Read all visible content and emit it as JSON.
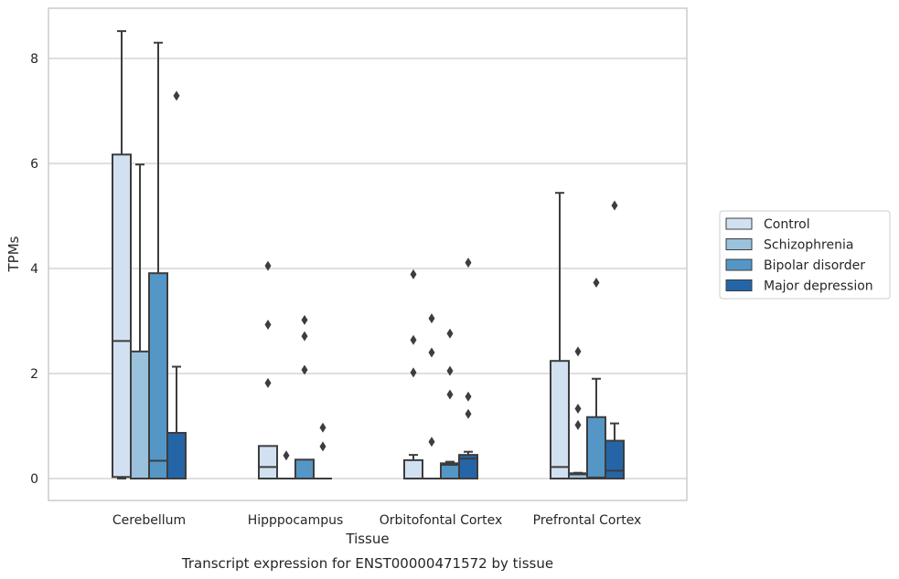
{
  "chart_data": {
    "type": "box",
    "caption": "Transcript expression for ENST00000471572 by tissue",
    "xlabel": "Tissue",
    "ylabel": "TPMs",
    "ylim": [
      -0.42,
      8.96
    ],
    "yticks": [
      0,
      2,
      4,
      6,
      8
    ],
    "grid": "horizontal",
    "legend_position": "right",
    "categories": [
      "Cerebellum",
      "Hipppocampus",
      "Orbitofontal Cortex",
      "Prefrontal Cortex"
    ],
    "series": [
      {
        "name": "Control",
        "color": "#d2e1f2",
        "boxes": [
          {
            "q1": 0.03,
            "median": 2.62,
            "q3": 6.17,
            "low": 0.0,
            "high": 8.52,
            "outliers": []
          },
          {
            "q1": 0.0,
            "median": 0.22,
            "q3": 0.62,
            "low": 0.0,
            "high": 0.62,
            "outliers": [
              1.82,
              2.93,
              4.05
            ]
          },
          {
            "q1": 0.0,
            "median": 0.0,
            "q3": 0.35,
            "low": 0.0,
            "high": 0.45,
            "outliers": [
              2.02,
              2.64,
              3.89
            ]
          },
          {
            "q1": 0.0,
            "median": 0.22,
            "q3": 2.24,
            "low": 0.0,
            "high": 5.44,
            "outliers": []
          }
        ]
      },
      {
        "name": "Schizophrenia",
        "color": "#9ac2dc",
        "boxes": [
          {
            "q1": 0.0,
            "median": 0.0,
            "q3": 2.42,
            "low": 0.0,
            "high": 5.98,
            "outliers": []
          },
          {
            "q1": 0.0,
            "median": 0.0,
            "q3": 0.0,
            "low": 0.0,
            "high": 0.0,
            "outliers": [
              0.44
            ]
          },
          {
            "q1": 0.0,
            "median": 0.0,
            "q3": 0.0,
            "low": 0.0,
            "high": 0.0,
            "outliers": [
              0.7,
              2.4,
              3.05
            ]
          },
          {
            "q1": 0.0,
            "median": 0.08,
            "q3": 0.1,
            "low": 0.0,
            "high": 0.11,
            "outliers": [
              1.02,
              1.33,
              2.42
            ]
          }
        ]
      },
      {
        "name": "Bipolar disorder",
        "color": "#5497c6",
        "boxes": [
          {
            "q1": 0.0,
            "median": 0.34,
            "q3": 3.91,
            "low": 0.0,
            "high": 8.3,
            "outliers": []
          },
          {
            "q1": 0.0,
            "median": 0.0,
            "q3": 0.36,
            "low": 0.0,
            "high": 0.36,
            "outliers": [
              2.07,
              2.71,
              3.02
            ]
          },
          {
            "q1": 0.0,
            "median": 0.26,
            "q3": 0.29,
            "low": 0.0,
            "high": 0.32,
            "outliers": [
              1.6,
              2.05,
              2.76
            ]
          },
          {
            "q1": 0.0,
            "median": 0.02,
            "q3": 1.17,
            "low": 0.0,
            "high": 1.9,
            "outliers": [
              3.73
            ]
          }
        ]
      },
      {
        "name": "Major depression",
        "color": "#2465a8",
        "boxes": [
          {
            "q1": 0.0,
            "median": 0.0,
            "q3": 0.87,
            "low": 0.0,
            "high": 2.13,
            "outliers": [
              7.29
            ]
          },
          {
            "q1": 0.0,
            "median": 0.0,
            "q3": 0.0,
            "low": 0.0,
            "high": 0.0,
            "outliers": [
              0.61,
              0.97
            ]
          },
          {
            "q1": 0.0,
            "median": 0.38,
            "q3": 0.45,
            "low": 0.0,
            "high": 0.51,
            "outliers": [
              1.23,
              1.56,
              4.11
            ]
          },
          {
            "q1": 0.0,
            "median": 0.15,
            "q3": 0.72,
            "low": 0.0,
            "high": 1.05,
            "outliers": [
              5.2
            ]
          }
        ]
      }
    ]
  }
}
